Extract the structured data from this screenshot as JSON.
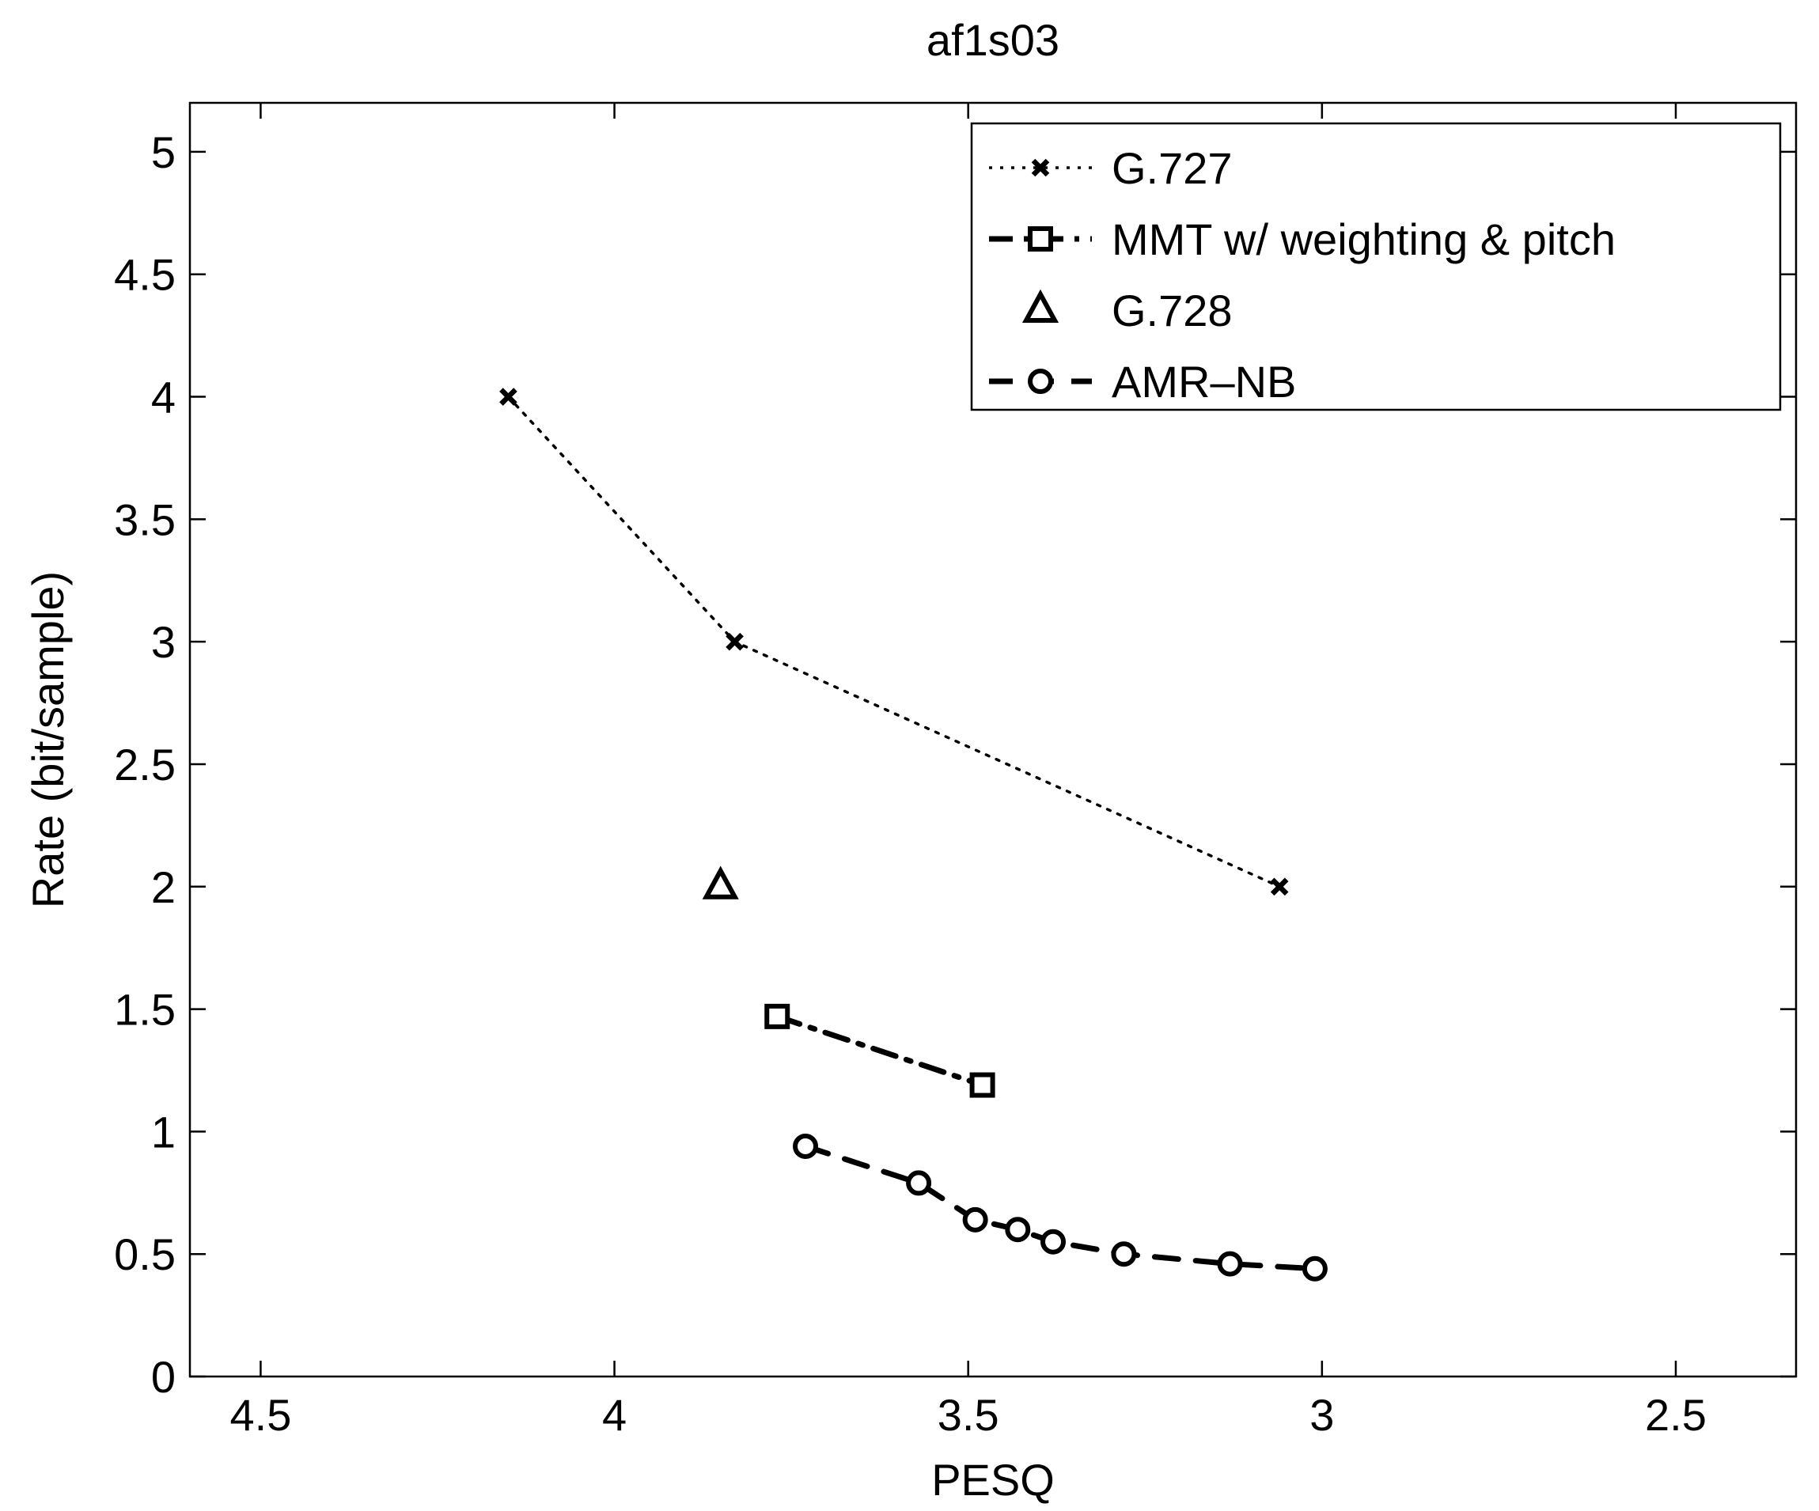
{
  "chart_data": {
    "type": "line",
    "title": "af1s03",
    "xlabel": "PESQ",
    "ylabel": "Rate (bit/sample)",
    "xlim": [
      4.6,
      2.33
    ],
    "x_reversed": true,
    "ylim": [
      0,
      5.2
    ],
    "xticks": [
      4.5,
      4,
      3.5,
      3,
      2.5
    ],
    "xtick_labels": [
      "4.5",
      "4",
      "3.5",
      "3",
      "2.5"
    ],
    "yticks": [
      0,
      0.5,
      1,
      1.5,
      2,
      2.5,
      3,
      3.5,
      4,
      4.5,
      5
    ],
    "ytick_labels": [
      "0",
      "0.5",
      "1",
      "1.5",
      "2",
      "2.5",
      "3",
      "3.5",
      "4",
      "4.5",
      "5"
    ],
    "grid": false,
    "legend_position": "top-right",
    "series": [
      {
        "name": "G.727",
        "line_style": "dotted",
        "marker": "x",
        "x": [
          4.15,
          3.83,
          3.06
        ],
        "y": [
          4.0,
          3.0,
          2.0
        ]
      },
      {
        "name": "MMT w/ weighting & pitch",
        "line_style": "dash-dot",
        "marker": "square",
        "x": [
          3.77,
          3.48
        ],
        "y": [
          1.47,
          1.19
        ]
      },
      {
        "name": "G.728",
        "line_style": "none",
        "marker": "triangle",
        "x": [
          3.85
        ],
        "y": [
          2.0
        ]
      },
      {
        "name": "AMR–NB",
        "line_style": "dashed",
        "marker": "circle",
        "x": [
          3.73,
          3.57,
          3.49,
          3.43,
          3.38,
          3.28,
          3.13,
          3.01
        ],
        "y": [
          0.94,
          0.79,
          0.64,
          0.6,
          0.55,
          0.5,
          0.46,
          0.44
        ]
      }
    ]
  }
}
